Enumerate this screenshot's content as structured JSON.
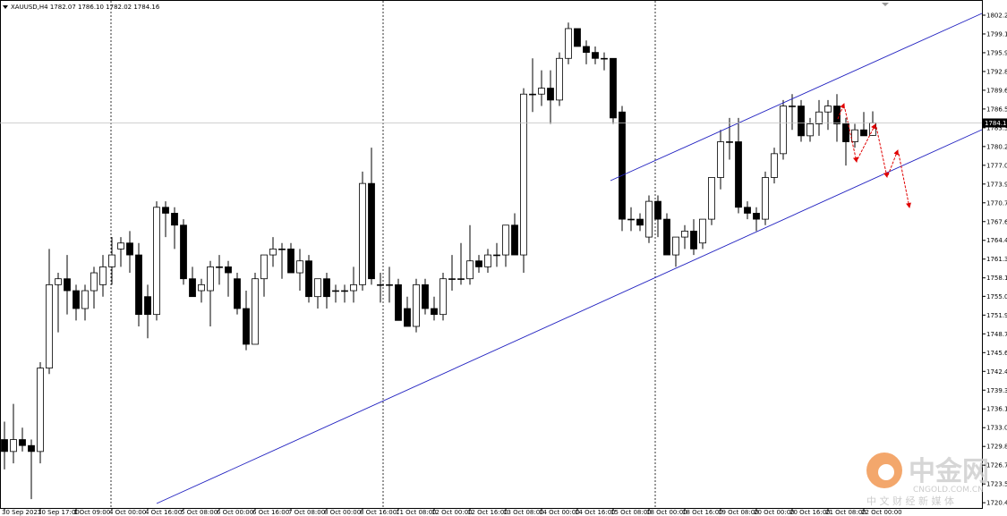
{
  "chart_data": {
    "type": "candlestick",
    "header": "XAUUSD,H4  1782.07 1786.10 1782.02 1784.16",
    "categories": [
      "30 Sep 2021",
      null,
      null,
      null,
      "30 Sep 17:00",
      null,
      null,
      null,
      "1 Oct 09:00",
      null,
      null,
      null,
      "4 Oct 00:00",
      null,
      null,
      null,
      "4 Oct 16:00",
      null,
      null,
      null,
      "5 Oct 08:00",
      null,
      null,
      null,
      "6 Oct 00:00",
      null,
      null,
      null,
      "6 Oct 16:00",
      null,
      null,
      null,
      "7 Oct 08:00",
      null,
      null,
      null,
      "8 Oct 00:00",
      null,
      null,
      null,
      "8 Oct 16:00",
      null,
      null,
      null,
      "11 Oct 08:00",
      null,
      null,
      null,
      "12 Oct 00:00",
      null,
      null,
      null,
      "12 Oct 16:00",
      null,
      null,
      null,
      "13 Oct 08:00",
      null,
      null,
      null,
      "14 Oct 00:00",
      null,
      null,
      null,
      "14 Oct 16:00",
      null,
      null,
      null,
      "15 Oct 08:00",
      null,
      null,
      null,
      "18 Oct 00:00",
      null,
      null,
      null,
      "18 Oct 16:00",
      null,
      null,
      null,
      "19 Oct 08:00",
      null,
      null,
      null,
      "20 Oct 00:00",
      null,
      null,
      null,
      "20 Oct 16:00",
      null,
      null,
      null,
      "21 Oct 08:00",
      null,
      null,
      null,
      "22 Oct 00:00",
      null
    ],
    "open": [
      1731,
      1729,
      1731,
      1730,
      1729,
      1743,
      1757,
      1758,
      1756,
      1753,
      1756,
      1757,
      1760,
      1763,
      1764,
      1762,
      1755,
      1752,
      1770,
      1769,
      1767,
      1758,
      1756,
      1756,
      1760,
      1760,
      1758,
      1753,
      1747,
      1758,
      1762,
      1763,
      1763,
      1759,
      1761,
      1755,
      1758,
      1756,
      1756,
      1756,
      1757,
      1774,
      1757,
      1757,
      1757,
      1753,
      1750,
      1757,
      1753,
      1752,
      1758,
      1758,
      1758,
      1761,
      1760,
      1762,
      1762,
      1767,
      1762,
      1789,
      1789,
      1790,
      1788,
      1795,
      1800,
      1797,
      1796,
      1795,
      1795,
      1786,
      1768,
      1768,
      1765,
      1771,
      1768,
      1762,
      1765,
      1766,
      1764,
      1768,
      1775,
      1781,
      1781,
      1770,
      1769,
      1768,
      1775,
      1779,
      1787,
      1787,
      1782,
      1784,
      1786,
      1787,
      1784,
      1781,
      1783,
      1782.07
    ],
    "high": [
      1734,
      1737,
      1733,
      1731,
      1744,
      1763,
      1759,
      1762,
      1757,
      1757,
      1760,
      1762,
      1765,
      1765,
      1766,
      1764,
      1757,
      1771,
      1771,
      1770,
      1768,
      1760,
      1758,
      1761,
      1762,
      1761,
      1759,
      1756,
      1759,
      1762,
      1765,
      1764,
      1764,
      1763,
      1762,
      1758,
      1759,
      1757,
      1757,
      1760,
      1776,
      1780,
      1759,
      1760,
      1758,
      1755,
      1758,
      1758,
      1755,
      1759,
      1762,
      1764,
      1767,
      1762,
      1763,
      1764,
      1767,
      1769,
      1790,
      1795,
      1793,
      1793,
      1796,
      1801,
      1800,
      1798,
      1797,
      1796,
      1795,
      1787,
      1770,
      1769,
      1772,
      1772,
      1769,
      1765,
      1767,
      1768,
      1768,
      1775,
      1783,
      1785,
      1785,
      1771,
      1770,
      1776,
      1780,
      1788,
      1789,
      1788,
      1785,
      1788,
      1788,
      1789,
      1785,
      1784,
      1786,
      1786.1
    ],
    "low": [
      1726,
      1727,
      1729,
      1721,
      1727,
      1742,
      1749,
      1752,
      1751,
      1751,
      1753,
      1755,
      1757,
      1760,
      1759,
      1750,
      1748,
      1751,
      1765,
      1763,
      1757,
      1755,
      1754,
      1750,
      1757,
      1755,
      1752,
      1746,
      1747,
      1755,
      1760,
      1758,
      1759,
      1756,
      1754,
      1753,
      1753,
      1754,
      1754,
      1754,
      1756,
      1757,
      1754,
      1754,
      1751,
      1750,
      1749,
      1752,
      1751,
      1751,
      1756,
      1757,
      1757,
      1759,
      1759,
      1760,
      1760,
      1762,
      1759,
      1786,
      1787,
      1784,
      1787,
      1794,
      1797,
      1794,
      1794,
      1793,
      1784,
      1766,
      1766,
      1766,
      1764,
      1765,
      1762,
      1760,
      1763,
      1762,
      1763,
      1767,
      1773,
      1778,
      1769,
      1768,
      1766,
      1767,
      1774,
      1778,
      1783,
      1781,
      1781,
      1782,
      1783,
      1781,
      1777,
      1780,
      1782,
      1782.02
    ],
    "close": [
      1729,
      1731,
      1730,
      1729,
      1743,
      1757,
      1758,
      1756,
      1753,
      1756,
      1759,
      1760,
      1762,
      1764,
      1762,
      1752,
      1752,
      1770,
      1769,
      1767,
      1758,
      1755,
      1757,
      1760,
      1760,
      1759,
      1753,
      1747,
      1758,
      1762,
      1763,
      1763,
      1759,
      1761,
      1755,
      1758,
      1755,
      1756,
      1756,
      1757,
      1774,
      1758,
      1757,
      1757,
      1751,
      1750,
      1757,
      1753,
      1752,
      1758,
      1758,
      1758,
      1761,
      1760,
      1762,
      1762,
      1767,
      1762,
      1789,
      1789,
      1790,
      1788,
      1795,
      1800,
      1797,
      1796,
      1795,
      1795,
      1785,
      1768,
      1768,
      1767,
      1771,
      1768,
      1762,
      1765,
      1766,
      1763,
      1768,
      1775,
      1781,
      1781,
      1770,
      1769,
      1768,
      1775,
      1779,
      1787,
      1787,
      1782,
      1784,
      1786,
      1787,
      1784,
      1781,
      1783,
      1782,
      1784.16
    ],
    "current_price": 1784.16,
    "ylim": [
      1719.52,
      1804.65
    ],
    "yticks": [
      1802.25,
      {
        "value": 1799.1,
        "label": "1799.10"
      },
      1795.95,
      {
        "value": 1792.8,
        "label": "1792.80"
      },
      1789.65,
      {
        "value": 1786.5,
        "label": "1786.50"
      },
      1783.35,
      {
        "value": 1780.2,
        "label": "1780.20"
      },
      1777.05,
      {
        "value": 1773.9,
        "label": "1773.90"
      },
      1770.75,
      {
        "value": 1767.6,
        "label": "1767.60"
      },
      1764.45,
      {
        "value": 1761.3,
        "label": "1761.30"
      },
      1758.15,
      1755.05,
      {
        "value": 1751.9,
        "label": "1751.90"
      },
      1748.75,
      {
        "value": 1745.6,
        "label": "1745.60"
      },
      1742.45,
      {
        "value": 1739.3,
        "label": "1739.30"
      },
      1736.15,
      {
        "value": 1733,
        "label": "1733.00"
      },
      1729.85,
      {
        "value": 1726.7,
        "label": "1726.70"
      },
      1723.55,
      {
        "value": 1720.4,
        "label": "1720.40"
      }
    ],
    "watermark": {
      "brand": "中金网",
      "site": "CNGOLD.COM.CN",
      "tagline": "中 文 财 经 新 媒 体"
    }
  }
}
